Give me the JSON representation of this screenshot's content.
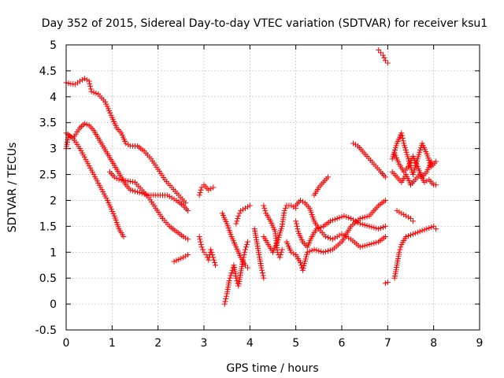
{
  "chart_data": {
    "type": "scatter",
    "title": "Day 352 of 2015, Sidereal Day-to-day VTEC variation (SDTVAR) for receiver ksu1",
    "xlabel": "GPS time / hours",
    "ylabel": "SDTVAR / TECUs",
    "xlim": [
      0,
      9
    ],
    "ylim": [
      -0.5,
      5
    ],
    "xticks": [
      "0",
      "1",
      "2",
      "3",
      "4",
      "5",
      "6",
      "7",
      "8",
      "9"
    ],
    "yticks": [
      "-0.5",
      "0",
      "0.5",
      "1",
      "1.5",
      "2",
      "2.5",
      "3",
      "3.5",
      "4",
      "4.5",
      "5"
    ],
    "grid": true,
    "marker": "+",
    "color": "#ff0000",
    "series": [
      {
        "name": "track-1",
        "points": [
          [
            0.0,
            4.27
          ],
          [
            0.1,
            4.25
          ],
          [
            0.2,
            4.24
          ],
          [
            0.3,
            4.3
          ],
          [
            0.4,
            4.35
          ],
          [
            0.5,
            4.3
          ],
          [
            0.55,
            4.1
          ],
          [
            0.7,
            4.05
          ],
          [
            0.85,
            3.9
          ],
          [
            1.0,
            3.6
          ],
          [
            1.1,
            3.4
          ],
          [
            1.2,
            3.3
          ],
          [
            1.3,
            3.1
          ],
          [
            1.4,
            3.05
          ],
          [
            1.55,
            3.05
          ],
          [
            1.7,
            2.95
          ],
          [
            1.85,
            2.8
          ],
          [
            2.0,
            2.6
          ],
          [
            2.15,
            2.4
          ],
          [
            2.3,
            2.25
          ],
          [
            2.45,
            2.1
          ],
          [
            2.6,
            1.95
          ]
        ]
      },
      {
        "name": "track-2",
        "points": [
          [
            0.0,
            3.3
          ],
          [
            0.15,
            3.2
          ],
          [
            0.3,
            3.4
          ],
          [
            0.4,
            3.48
          ],
          [
            0.5,
            3.45
          ],
          [
            0.6,
            3.35
          ],
          [
            0.7,
            3.2
          ],
          [
            0.8,
            3.05
          ],
          [
            0.9,
            2.9
          ],
          [
            1.0,
            2.75
          ],
          [
            1.1,
            2.6
          ],
          [
            1.2,
            2.45
          ],
          [
            1.3,
            2.3
          ],
          [
            1.4,
            2.2
          ],
          [
            1.6,
            2.15
          ],
          [
            1.8,
            2.1
          ],
          [
            2.0,
            2.1
          ],
          [
            2.2,
            2.1
          ],
          [
            2.4,
            2.0
          ],
          [
            2.55,
            1.9
          ],
          [
            2.65,
            1.8
          ]
        ]
      },
      {
        "name": "track-3",
        "points": [
          [
            0.0,
            3.0
          ],
          [
            0.05,
            3.25
          ],
          [
            0.15,
            3.2
          ],
          [
            0.3,
            3.0
          ],
          [
            0.45,
            2.75
          ],
          [
            0.6,
            2.5
          ],
          [
            0.75,
            2.25
          ],
          [
            0.9,
            2.0
          ],
          [
            1.05,
            1.7
          ],
          [
            1.15,
            1.45
          ],
          [
            1.25,
            1.3
          ]
        ]
      },
      {
        "name": "track-4",
        "points": [
          [
            0.95,
            2.55
          ],
          [
            1.05,
            2.45
          ],
          [
            1.15,
            2.4
          ],
          [
            1.3,
            2.38
          ],
          [
            1.5,
            2.35
          ],
          [
            1.65,
            2.2
          ],
          [
            1.8,
            2.05
          ],
          [
            1.95,
            1.85
          ],
          [
            2.1,
            1.65
          ],
          [
            2.25,
            1.5
          ],
          [
            2.4,
            1.4
          ],
          [
            2.55,
            1.3
          ],
          [
            2.65,
            1.25
          ]
        ]
      },
      {
        "name": "track-5",
        "points": [
          [
            2.35,
            0.82
          ],
          [
            2.45,
            0.86
          ],
          [
            2.55,
            0.9
          ],
          [
            2.65,
            0.95
          ]
        ]
      },
      {
        "name": "track-6",
        "points": [
          [
            2.9,
            2.1
          ],
          [
            2.95,
            2.25
          ],
          [
            3.0,
            2.3
          ],
          [
            3.1,
            2.2
          ],
          [
            3.2,
            2.25
          ]
        ]
      },
      {
        "name": "track-7",
        "points": [
          [
            2.9,
            1.3
          ],
          [
            2.95,
            1.1
          ],
          [
            3.0,
            1.0
          ],
          [
            3.05,
            0.95
          ],
          [
            3.1,
            0.85
          ],
          [
            3.15,
            1.05
          ],
          [
            3.2,
            0.9
          ],
          [
            3.25,
            0.75
          ]
        ]
      },
      {
        "name": "track-8",
        "points": [
          [
            3.4,
            1.75
          ],
          [
            3.5,
            1.55
          ],
          [
            3.6,
            1.3
          ],
          [
            3.7,
            1.1
          ],
          [
            3.8,
            0.9
          ],
          [
            3.9,
            0.75
          ],
          [
            3.95,
            0.7
          ]
        ]
      },
      {
        "name": "track-9",
        "points": [
          [
            3.45,
            0.0
          ],
          [
            3.5,
            0.2
          ],
          [
            3.55,
            0.45
          ],
          [
            3.6,
            0.6
          ],
          [
            3.65,
            0.75
          ],
          [
            3.7,
            0.5
          ],
          [
            3.75,
            0.35
          ],
          [
            3.8,
            0.6
          ],
          [
            3.85,
            0.85
          ],
          [
            3.9,
            1.05
          ],
          [
            3.95,
            1.2
          ]
        ]
      },
      {
        "name": "track-10",
        "points": [
          [
            3.7,
            1.55
          ],
          [
            3.75,
            1.7
          ],
          [
            3.8,
            1.8
          ],
          [
            3.9,
            1.85
          ],
          [
            4.0,
            1.9
          ]
        ]
      },
      {
        "name": "track-11",
        "points": [
          [
            4.1,
            1.45
          ],
          [
            4.15,
            1.2
          ],
          [
            4.2,
            0.95
          ],
          [
            4.25,
            0.7
          ],
          [
            4.3,
            0.5
          ]
        ]
      },
      {
        "name": "track-12",
        "points": [
          [
            4.3,
            1.9
          ],
          [
            4.35,
            1.75
          ],
          [
            4.45,
            1.6
          ],
          [
            4.55,
            1.4
          ],
          [
            4.6,
            1.0
          ],
          [
            4.65,
            0.9
          ],
          [
            4.7,
            1.05
          ]
        ]
      },
      {
        "name": "track-13",
        "points": [
          [
            4.3,
            1.3
          ],
          [
            4.4,
            1.15
          ],
          [
            4.5,
            1.0
          ],
          [
            4.6,
            1.2
          ],
          [
            4.7,
            1.5
          ],
          [
            4.75,
            1.8
          ],
          [
            4.8,
            1.9
          ],
          [
            4.9,
            1.9
          ],
          [
            5.0,
            1.85
          ]
        ]
      },
      {
        "name": "track-14",
        "points": [
          [
            4.8,
            1.2
          ],
          [
            4.9,
            1.0
          ],
          [
            5.0,
            0.95
          ],
          [
            5.1,
            0.8
          ],
          [
            5.15,
            0.65
          ],
          [
            5.25,
            1.0
          ],
          [
            5.4,
            1.05
          ],
          [
            5.6,
            1.0
          ],
          [
            5.8,
            1.05
          ],
          [
            6.0,
            1.2
          ],
          [
            6.2,
            1.5
          ],
          [
            6.4,
            1.65
          ],
          [
            6.6,
            1.7
          ],
          [
            6.8,
            1.9
          ],
          [
            6.95,
            2.0
          ]
        ]
      },
      {
        "name": "track-15",
        "points": [
          [
            5.0,
            1.6
          ],
          [
            5.05,
            1.4
          ],
          [
            5.15,
            1.2
          ],
          [
            5.25,
            1.1
          ],
          [
            5.35,
            1.3
          ],
          [
            5.45,
            1.45
          ],
          [
            5.6,
            1.5
          ],
          [
            5.75,
            1.6
          ],
          [
            5.9,
            1.65
          ],
          [
            6.05,
            1.7
          ],
          [
            6.2,
            1.65
          ],
          [
            6.4,
            1.55
          ],
          [
            6.6,
            1.5
          ],
          [
            6.8,
            1.45
          ],
          [
            6.95,
            1.5
          ]
        ]
      },
      {
        "name": "track-16",
        "points": [
          [
            5.0,
            1.9
          ],
          [
            5.1,
            2.0
          ],
          [
            5.2,
            1.95
          ],
          [
            5.3,
            1.85
          ],
          [
            5.4,
            1.6
          ],
          [
            5.5,
            1.45
          ],
          [
            5.65,
            1.3
          ],
          [
            5.8,
            1.25
          ],
          [
            6.0,
            1.35
          ],
          [
            6.2,
            1.25
          ],
          [
            6.4,
            1.1
          ],
          [
            6.6,
            1.15
          ],
          [
            6.8,
            1.2
          ],
          [
            6.95,
            1.3
          ]
        ]
      },
      {
        "name": "track-17",
        "points": [
          [
            5.4,
            2.1
          ],
          [
            5.5,
            2.25
          ],
          [
            5.6,
            2.35
          ],
          [
            5.7,
            2.45
          ]
        ]
      },
      {
        "name": "track-18",
        "points": [
          [
            6.25,
            3.1
          ],
          [
            6.35,
            3.05
          ],
          [
            6.45,
            2.95
          ],
          [
            6.55,
            2.85
          ],
          [
            6.7,
            2.7
          ],
          [
            6.85,
            2.55
          ],
          [
            6.95,
            2.45
          ]
        ]
      },
      {
        "name": "track-19",
        "points": [
          [
            6.8,
            4.9
          ],
          [
            6.85,
            4.85
          ],
          [
            6.9,
            4.8
          ],
          [
            6.95,
            4.7
          ],
          [
            7.0,
            4.65
          ]
        ]
      },
      {
        "name": "track-20",
        "points": [
          [
            6.95,
            0.4
          ],
          [
            7.0,
            0.42
          ]
        ]
      },
      {
        "name": "track-21",
        "points": [
          [
            7.15,
            0.5
          ],
          [
            7.2,
            0.75
          ],
          [
            7.25,
            1.0
          ],
          [
            7.3,
            1.15
          ],
          [
            7.4,
            1.3
          ],
          [
            7.55,
            1.35
          ],
          [
            7.7,
            1.4
          ],
          [
            7.85,
            1.45
          ],
          [
            8.0,
            1.5
          ],
          [
            8.05,
            1.45
          ]
        ]
      },
      {
        "name": "track-22",
        "points": [
          [
            7.2,
            1.8
          ],
          [
            7.3,
            1.75
          ],
          [
            7.4,
            1.7
          ],
          [
            7.5,
            1.65
          ],
          [
            7.55,
            1.6
          ]
        ]
      },
      {
        "name": "track-23",
        "points": [
          [
            7.1,
            2.8
          ],
          [
            7.2,
            3.1
          ],
          [
            7.3,
            3.3
          ],
          [
            7.35,
            3.1
          ],
          [
            7.45,
            2.8
          ],
          [
            7.55,
            2.5
          ],
          [
            7.65,
            2.8
          ],
          [
            7.75,
            3.1
          ],
          [
            7.85,
            2.9
          ],
          [
            7.95,
            2.65
          ],
          [
            8.05,
            2.75
          ]
        ]
      },
      {
        "name": "track-24",
        "points": [
          [
            7.1,
            2.55
          ],
          [
            7.2,
            2.45
          ],
          [
            7.3,
            2.35
          ],
          [
            7.4,
            2.5
          ],
          [
            7.5,
            2.3
          ],
          [
            7.6,
            2.4
          ],
          [
            7.7,
            2.5
          ],
          [
            7.8,
            2.35
          ],
          [
            7.9,
            2.4
          ],
          [
            8.0,
            2.3
          ],
          [
            8.05,
            2.3
          ]
        ]
      },
      {
        "name": "track-25",
        "points": [
          [
            7.15,
            2.9
          ],
          [
            7.25,
            2.7
          ],
          [
            7.35,
            2.55
          ],
          [
            7.45,
            2.65
          ],
          [
            7.55,
            2.85
          ],
          [
            7.65,
            2.65
          ],
          [
            7.75,
            2.45
          ],
          [
            7.85,
            2.55
          ],
          [
            7.95,
            2.75
          ]
        ]
      }
    ]
  }
}
